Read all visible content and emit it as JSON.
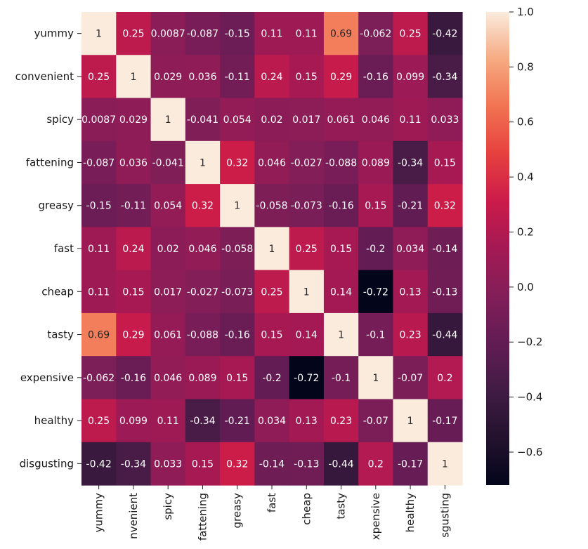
{
  "chart_data": {
    "type": "heatmap",
    "title": "",
    "xlabel": "",
    "ylabel": "",
    "rows": [
      "yummy",
      "convenient",
      "spicy",
      "fattening",
      "greasy",
      "fast",
      "cheap",
      "tasty",
      "expensive",
      "healthy",
      "disgusting"
    ],
    "columns": [
      "yummy",
      "convenient",
      "spicy",
      "fattening",
      "greasy",
      "fast",
      "cheap",
      "tasty",
      "expensive",
      "healthy",
      "disgusting"
    ],
    "column_tick_labels_visible": [
      "yummy",
      "nvenient",
      "spicy",
      "fattening",
      "greasy",
      "fast",
      "cheap",
      "tasty",
      "xpensive",
      "healthy",
      "sgusting"
    ],
    "values": [
      [
        1,
        0.25,
        0.0087,
        -0.087,
        -0.15,
        0.11,
        0.11,
        0.69,
        -0.062,
        0.25,
        -0.42
      ],
      [
        0.25,
        1,
        0.029,
        0.036,
        -0.11,
        0.24,
        0.15,
        0.29,
        -0.16,
        0.099,
        -0.34
      ],
      [
        0.0087,
        0.029,
        1,
        -0.041,
        0.054,
        0.02,
        0.017,
        0.061,
        0.046,
        0.11,
        0.033
      ],
      [
        -0.087,
        0.036,
        -0.041,
        1,
        0.32,
        0.046,
        -0.027,
        -0.088,
        0.089,
        -0.34,
        0.15
      ],
      [
        -0.15,
        -0.11,
        0.054,
        0.32,
        1,
        -0.058,
        -0.073,
        -0.16,
        0.15,
        -0.21,
        0.32
      ],
      [
        0.11,
        0.24,
        0.02,
        0.046,
        -0.058,
        1,
        0.25,
        0.15,
        -0.2,
        0.034,
        -0.14
      ],
      [
        0.11,
        0.15,
        0.017,
        -0.027,
        -0.073,
        0.25,
        1,
        0.14,
        -0.72,
        0.13,
        -0.13
      ],
      [
        0.69,
        0.29,
        0.061,
        -0.088,
        -0.16,
        0.15,
        0.14,
        1,
        -0.1,
        0.23,
        -0.44
      ],
      [
        -0.062,
        -0.16,
        0.046,
        0.089,
        0.15,
        -0.2,
        -0.72,
        -0.1,
        1,
        -0.07,
        0.2
      ],
      [
        0.25,
        0.099,
        0.11,
        -0.34,
        -0.21,
        0.034,
        0.13,
        0.23,
        -0.07,
        1,
        -0.17
      ],
      [
        -0.42,
        -0.34,
        0.033,
        0.15,
        0.32,
        -0.14,
        -0.13,
        -0.44,
        0.2,
        -0.17,
        1
      ]
    ],
    "value_labels": [
      [
        "1",
        "0.25",
        "0.0087",
        "-0.087",
        "-0.15",
        "0.11",
        "0.11",
        "0.69",
        "-0.062",
        "0.25",
        "-0.42"
      ],
      [
        "0.25",
        "1",
        "0.029",
        "0.036",
        "-0.11",
        "0.24",
        "0.15",
        "0.29",
        "-0.16",
        "0.099",
        "-0.34"
      ],
      [
        "0.0087",
        "0.029",
        "1",
        "-0.041",
        "0.054",
        "0.02",
        "0.017",
        "0.061",
        "0.046",
        "0.11",
        "0.033"
      ],
      [
        "-0.087",
        "0.036",
        "-0.041",
        "1",
        "0.32",
        "0.046",
        "-0.027",
        "-0.088",
        "0.089",
        "-0.34",
        "0.15"
      ],
      [
        "-0.15",
        "-0.11",
        "0.054",
        "0.32",
        "1",
        "-0.058",
        "-0.073",
        "-0.16",
        "0.15",
        "-0.21",
        "0.32"
      ],
      [
        "0.11",
        "0.24",
        "0.02",
        "0.046",
        "-0.058",
        "1",
        "0.25",
        "0.15",
        "-0.2",
        "0.034",
        "-0.14"
      ],
      [
        "0.11",
        "0.15",
        "0.017",
        "-0.027",
        "-0.073",
        "0.25",
        "1",
        "0.14",
        "-0.72",
        "0.13",
        "-0.13"
      ],
      [
        "0.69",
        "0.29",
        "0.061",
        "-0.088",
        "-0.16",
        "0.15",
        "0.14",
        "1",
        "-0.1",
        "0.23",
        "-0.44"
      ],
      [
        "-0.062",
        "-0.16",
        "0.046",
        "0.089",
        "0.15",
        "-0.2",
        "-0.72",
        "-0.1",
        "1",
        "-0.07",
        "0.2"
      ],
      [
        "0.25",
        "0.099",
        "0.11",
        "-0.34",
        "-0.21",
        "0.034",
        "0.13",
        "0.23",
        "-0.07",
        "1",
        "-0.17"
      ],
      [
        "-0.42",
        "-0.34",
        "0.033",
        "0.15",
        "0.32",
        "-0.14",
        "-0.13",
        "-0.44",
        "0.2",
        "-0.17",
        "1"
      ]
    ],
    "colorbar": {
      "colormap": "rocket",
      "vmin": -0.72,
      "vmax": 1.0,
      "ticks": [
        1.0,
        0.8,
        0.6,
        0.4,
        0.2,
        0.0,
        -0.2,
        -0.4,
        -0.6
      ],
      "tick_labels": [
        "1.0",
        "0.8",
        "0.6",
        "0.4",
        "0.2",
        "0.0",
        "−0.2",
        "−0.4",
        "−0.6"
      ]
    },
    "grid": false,
    "legend": "none"
  }
}
